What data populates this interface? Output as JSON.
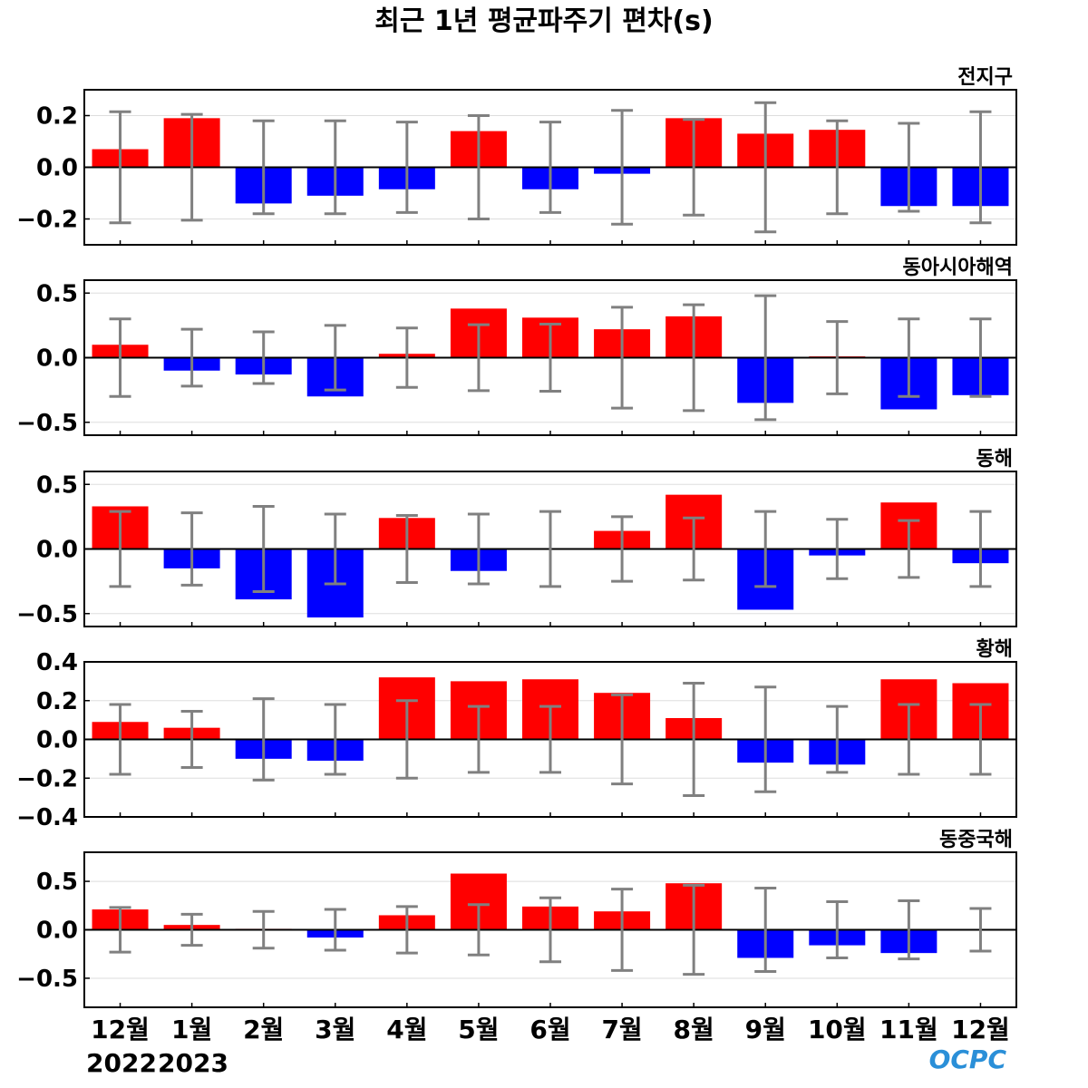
{
  "chart_data": {
    "type": "bar",
    "title": "최근 1년 평균파주기 편차(s)",
    "categories": [
      "12월",
      "1월",
      "2월",
      "3월",
      "4월",
      "5월",
      "6월",
      "7월",
      "8월",
      "9월",
      "10월",
      "11월",
      "12월"
    ],
    "year_labels": [
      "2022",
      "2023"
    ],
    "logo": "OCPC",
    "colors": {
      "positive": "#ff0000",
      "negative": "#0000ff",
      "errorbar": "#808080",
      "zero_line": "#000000",
      "grid": "#dddddd"
    },
    "panels": [
      {
        "name": "전지구",
        "ylim": [
          -0.3,
          0.3
        ],
        "yticks": [
          0.2,
          0.0,
          -0.2
        ],
        "ytick_labels": [
          "0.2",
          "0.0",
          "−0.2"
        ],
        "values": [
          0.07,
          0.19,
          -0.14,
          -0.11,
          -0.085,
          0.14,
          -0.085,
          -0.025,
          0.19,
          0.13,
          0.145,
          -0.15,
          -0.15
        ],
        "errors": [
          0.215,
          0.205,
          0.18,
          0.18,
          0.175,
          0.2,
          0.175,
          0.22,
          0.185,
          0.25,
          0.18,
          0.17,
          0.215
        ]
      },
      {
        "name": "동아시아해역",
        "ylim": [
          -0.6,
          0.6
        ],
        "yticks": [
          0.5,
          0.0,
          -0.5
        ],
        "ytick_labels": [
          "0.5",
          "0.0",
          "−0.5"
        ],
        "values": [
          0.1,
          -0.1,
          -0.13,
          -0.3,
          0.03,
          0.38,
          0.31,
          0.22,
          0.32,
          -0.35,
          0.01,
          -0.4,
          -0.29
        ],
        "errors": [
          0.3,
          0.22,
          0.2,
          0.25,
          0.23,
          0.255,
          0.26,
          0.39,
          0.41,
          0.48,
          0.28,
          0.3,
          0.3
        ]
      },
      {
        "name": "동해",
        "ylim": [
          -0.6,
          0.6
        ],
        "yticks": [
          0.5,
          0.0,
          -0.5
        ],
        "ytick_labels": [
          "0.5",
          "0.0",
          "−0.5"
        ],
        "values": [
          0.33,
          -0.15,
          -0.39,
          -0.53,
          0.24,
          -0.17,
          0.005,
          0.14,
          0.42,
          -0.47,
          -0.05,
          0.36,
          -0.11
        ],
        "errors": [
          0.29,
          0.28,
          0.33,
          0.27,
          0.26,
          0.27,
          0.29,
          0.25,
          0.24,
          0.29,
          0.23,
          0.22,
          0.29
        ]
      },
      {
        "name": "황해",
        "ylim": [
          -0.4,
          0.4
        ],
        "yticks": [
          0.4,
          0.2,
          0.0,
          -0.2,
          -0.4
        ],
        "ytick_labels": [
          "0.4",
          "0.2",
          "0.0",
          "−0.2",
          "−0.4"
        ],
        "values": [
          0.09,
          0.06,
          -0.1,
          -0.11,
          0.32,
          0.3,
          0.31,
          0.24,
          0.11,
          -0.12,
          -0.13,
          0.31,
          0.29
        ],
        "errors": [
          0.18,
          0.145,
          0.21,
          0.18,
          0.2,
          0.17,
          0.17,
          0.23,
          0.29,
          0.27,
          0.17,
          0.18,
          0.18
        ]
      },
      {
        "name": "동중국해",
        "ylim": [
          -0.8,
          0.8
        ],
        "yticks": [
          0.5,
          0.0,
          -0.5
        ],
        "ytick_labels": [
          "0.5",
          "0.0",
          "−0.5"
        ],
        "values": [
          0.21,
          0.05,
          0.01,
          -0.08,
          0.15,
          0.58,
          0.24,
          0.19,
          0.48,
          -0.29,
          -0.16,
          -0.24,
          0.005
        ],
        "errors": [
          0.23,
          0.16,
          0.19,
          0.21,
          0.24,
          0.26,
          0.33,
          0.42,
          0.46,
          0.43,
          0.29,
          0.3,
          0.22
        ]
      }
    ]
  }
}
